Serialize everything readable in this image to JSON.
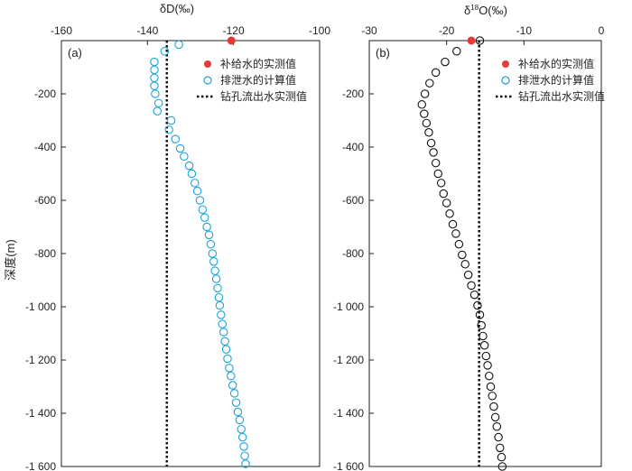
{
  "ylabel": "深度(m)",
  "chart_data": [
    {
      "panel_label": "(a)",
      "type": "scatter",
      "xlabel": "δD(‰)",
      "xlim": [
        -160,
        -100
      ],
      "ylim": [
        -1600,
        0
      ],
      "xticks": [
        -160,
        -140,
        -120,
        -100
      ],
      "yticks": [
        -200,
        -400,
        -600,
        -800,
        -1000,
        -1200,
        -1400,
        -1600
      ],
      "ytick_labels": [
        "-200",
        "-400",
        "-600",
        "-800",
        "-1 000",
        "-1 200",
        "-1 400",
        "-1 600"
      ],
      "legend_position": "top-right",
      "legend": {
        "recharge": "补给水的实测值",
        "discharge": "排泄水的计算值",
        "borehole": "钻孔流出水实测值"
      },
      "colors": {
        "recharge": "#e53935",
        "discharge": "#1aa3d9",
        "borehole": "#111111"
      },
      "recharge_point": {
        "x": -120.5,
        "y": 0
      },
      "borehole_line_x": -135.5,
      "discharge_points": [
        {
          "x": -132.7,
          "y": -15
        },
        {
          "x": -136,
          "y": -40
        },
        {
          "x": -138.4,
          "y": -80
        },
        {
          "x": -138.4,
          "y": -110
        },
        {
          "x": -138.4,
          "y": -140
        },
        {
          "x": -138.4,
          "y": -170
        },
        {
          "x": -138.2,
          "y": -200
        },
        {
          "x": -137.4,
          "y": -235
        },
        {
          "x": -137.7,
          "y": -265
        },
        {
          "x": -134.5,
          "y": -300
        },
        {
          "x": -135,
          "y": -335
        },
        {
          "x": -133.5,
          "y": -370
        },
        {
          "x": -132.4,
          "y": -405
        },
        {
          "x": -131.5,
          "y": -435
        },
        {
          "x": -130.3,
          "y": -470
        },
        {
          "x": -129.7,
          "y": -500
        },
        {
          "x": -129,
          "y": -535
        },
        {
          "x": -128.4,
          "y": -565
        },
        {
          "x": -127.8,
          "y": -600
        },
        {
          "x": -127.2,
          "y": -635
        },
        {
          "x": -126.7,
          "y": -665
        },
        {
          "x": -126.2,
          "y": -700
        },
        {
          "x": -125.7,
          "y": -730
        },
        {
          "x": -125.3,
          "y": -765
        },
        {
          "x": -124.9,
          "y": -800
        },
        {
          "x": -124.6,
          "y": -830
        },
        {
          "x": -124.3,
          "y": -865
        },
        {
          "x": -124,
          "y": -895
        },
        {
          "x": -123.7,
          "y": -930
        },
        {
          "x": -123.4,
          "y": -965
        },
        {
          "x": -123.2,
          "y": -995
        },
        {
          "x": -122.9,
          "y": -1030
        },
        {
          "x": -122.6,
          "y": -1065
        },
        {
          "x": -122.3,
          "y": -1095
        },
        {
          "x": -122,
          "y": -1130
        },
        {
          "x": -121.7,
          "y": -1160
        },
        {
          "x": -121.4,
          "y": -1195
        },
        {
          "x": -121,
          "y": -1230
        },
        {
          "x": -120.6,
          "y": -1260
        },
        {
          "x": -120.2,
          "y": -1295
        },
        {
          "x": -119.8,
          "y": -1325
        },
        {
          "x": -119.4,
          "y": -1360
        },
        {
          "x": -119,
          "y": -1395
        },
        {
          "x": -118.6,
          "y": -1425
        },
        {
          "x": -118.2,
          "y": -1460
        },
        {
          "x": -117.9,
          "y": -1490
        },
        {
          "x": -117.6,
          "y": -1525
        },
        {
          "x": -117.4,
          "y": -1560
        },
        {
          "x": -117.2,
          "y": -1590
        }
      ]
    },
    {
      "panel_label": "(b)",
      "type": "scatter",
      "xlabel_prefix": "δ",
      "xlabel_sup": "18",
      "xlabel_suffix": "O(‰)",
      "xlim": [
        -30,
        0
      ],
      "ylim": [
        -1600,
        0
      ],
      "xticks": [
        -30,
        -20,
        -10,
        0
      ],
      "yticks": [
        -200,
        -400,
        -600,
        -800,
        -1000,
        -1200,
        -1400,
        -1600
      ],
      "ytick_labels": [
        "-200",
        "-400",
        "-600",
        "-800",
        "-1 000",
        "-1 200",
        "-1 400",
        "-1 600"
      ],
      "legend_position": "top-right",
      "legend": {
        "recharge": "补给水的实测值",
        "discharge": "排泄水的计算值",
        "borehole": "钻孔流出水实测值"
      },
      "colors": {
        "recharge": "#e53935",
        "discharge": "#111111",
        "borehole": "#111111",
        "legend_discharge": "#1aa3d9"
      },
      "recharge_point": {
        "x": -16.8,
        "y": 0
      },
      "borehole_line_x": -15.8,
      "discharge_points": [
        {
          "x": -15.7,
          "y": 0
        },
        {
          "x": -18.7,
          "y": -40
        },
        {
          "x": -20.2,
          "y": -80
        },
        {
          "x": -21.4,
          "y": -120
        },
        {
          "x": -22.2,
          "y": -160
        },
        {
          "x": -22.8,
          "y": -200
        },
        {
          "x": -23.2,
          "y": -240
        },
        {
          "x": -22.9,
          "y": -275
        },
        {
          "x": -22.6,
          "y": -310
        },
        {
          "x": -22.3,
          "y": -345
        },
        {
          "x": -22,
          "y": -385
        },
        {
          "x": -21.7,
          "y": -420
        },
        {
          "x": -21.4,
          "y": -460
        },
        {
          "x": -21.1,
          "y": -500
        },
        {
          "x": -20.7,
          "y": -535
        },
        {
          "x": -20.4,
          "y": -575
        },
        {
          "x": -20,
          "y": -610
        },
        {
          "x": -19.6,
          "y": -650
        },
        {
          "x": -19.2,
          "y": -690
        },
        {
          "x": -18.8,
          "y": -725
        },
        {
          "x": -18.4,
          "y": -765
        },
        {
          "x": -18,
          "y": -805
        },
        {
          "x": -17.6,
          "y": -840
        },
        {
          "x": -17.2,
          "y": -880
        },
        {
          "x": -16.8,
          "y": -920
        },
        {
          "x": -16.4,
          "y": -955
        },
        {
          "x": -16,
          "y": -995
        },
        {
          "x": -15.7,
          "y": -1030
        },
        {
          "x": -15.5,
          "y": -1070
        },
        {
          "x": -15.3,
          "y": -1110
        },
        {
          "x": -15.1,
          "y": -1145
        },
        {
          "x": -14.9,
          "y": -1185
        },
        {
          "x": -14.7,
          "y": -1220
        },
        {
          "x": -14.5,
          "y": -1260
        },
        {
          "x": -14.3,
          "y": -1300
        },
        {
          "x": -14.1,
          "y": -1335
        },
        {
          "x": -13.9,
          "y": -1375
        },
        {
          "x": -13.7,
          "y": -1415
        },
        {
          "x": -13.5,
          "y": -1450
        },
        {
          "x": -13.3,
          "y": -1490
        },
        {
          "x": -13.1,
          "y": -1530
        },
        {
          "x": -12.9,
          "y": -1565
        },
        {
          "x": -12.8,
          "y": -1600
        }
      ]
    }
  ]
}
